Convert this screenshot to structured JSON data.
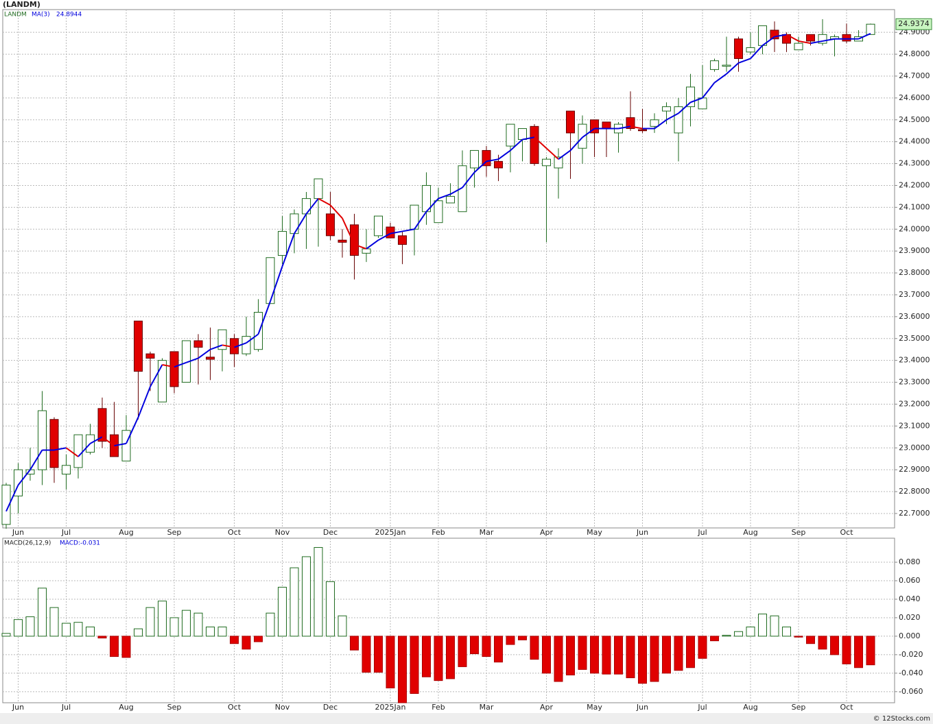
{
  "header": {
    "title": "(LANDM)"
  },
  "footer": {
    "text": "© 12Stocks.com"
  },
  "chart_data": [
    {
      "type": "candlestick",
      "legend": {
        "symbol": "LANDM",
        "ma_name": "MA(3)",
        "ma_value": "24.8944"
      },
      "last_label": "24.9374",
      "categories": [
        null,
        "Jun",
        null,
        null,
        null,
        "Jul",
        null,
        null,
        null,
        null,
        "Aug",
        null,
        null,
        null,
        "Sep",
        null,
        null,
        null,
        null,
        "Oct",
        null,
        null,
        null,
        "Nov",
        null,
        null,
        null,
        "Dec",
        null,
        null,
        null,
        null,
        "2025Jan",
        null,
        null,
        null,
        "Feb",
        null,
        null,
        null,
        "Mar",
        null,
        null,
        null,
        null,
        "Apr",
        null,
        null,
        null,
        "May",
        null,
        null,
        null,
        "Jun",
        null,
        null,
        null,
        null,
        "Jul",
        null,
        null,
        null,
        "Aug",
        null,
        null,
        null,
        "Sep",
        null,
        null,
        null,
        "Oct",
        null,
        null
      ],
      "open": [
        22.65,
        22.78,
        22.88,
        22.9,
        23.13,
        22.88,
        22.91,
        22.98,
        23.18,
        23.06,
        22.94,
        23.58,
        23.43,
        23.21,
        23.44,
        23.3,
        23.49,
        23.415,
        23.45,
        23.5,
        23.43,
        23.45,
        23.66,
        23.88,
        23.98,
        24.07,
        24.14,
        24.07,
        23.95,
        24.02,
        23.89,
        23.97,
        24.01,
        23.97,
        24.0,
        24.08,
        24.03,
        24.12,
        24.08,
        24.28,
        24.36,
        24.31,
        24.38,
        24.41,
        24.47,
        24.29,
        24.28,
        24.54,
        24.37,
        24.5,
        24.49,
        24.44,
        24.51,
        24.455,
        24.47,
        24.54,
        24.44,
        24.56,
        24.55,
        24.73,
        24.745,
        24.87,
        24.81,
        24.84,
        24.91,
        24.89,
        24.82,
        24.89,
        24.85,
        24.87,
        24.89,
        24.86,
        24.89
      ],
      "high": [
        22.84,
        22.93,
        23.0,
        23.26,
        23.14,
        22.97,
        23.06,
        23.11,
        23.23,
        23.21,
        23.15,
        23.58,
        23.44,
        23.41,
        23.44,
        23.49,
        23.52,
        23.55,
        23.54,
        23.52,
        23.6,
        23.68,
        23.87,
        24.06,
        24.09,
        24.17,
        24.23,
        24.17,
        24.0,
        24.07,
        24.0,
        24.06,
        24.03,
        23.99,
        24.11,
        24.26,
        24.19,
        24.21,
        24.36,
        24.36,
        24.38,
        24.34,
        24.48,
        24.46,
        24.48,
        24.33,
        24.37,
        24.54,
        24.52,
        24.5,
        24.49,
        24.49,
        24.63,
        24.55,
        24.53,
        24.58,
        24.6,
        24.71,
        24.75,
        24.78,
        24.88,
        24.88,
        24.9,
        24.93,
        24.95,
        24.9,
        24.88,
        24.89,
        24.96,
        24.89,
        24.94,
        24.91,
        24.94
      ],
      "low": [
        22.63,
        22.7,
        22.85,
        22.83,
        22.84,
        22.81,
        22.86,
        22.97,
        23.0,
        22.96,
        22.94,
        23.13,
        23.26,
        23.21,
        23.25,
        23.3,
        23.29,
        23.31,
        23.35,
        23.37,
        23.42,
        23.44,
        23.66,
        23.84,
        23.89,
        23.91,
        23.92,
        23.95,
        23.87,
        23.77,
        23.85,
        23.96,
        23.96,
        23.84,
        23.88,
        24.02,
        24.03,
        24.12,
        24.08,
        24.19,
        24.24,
        24.22,
        24.26,
        24.31,
        24.29,
        23.94,
        24.14,
        24.23,
        24.3,
        24.33,
        24.33,
        24.35,
        24.45,
        24.44,
        24.44,
        24.48,
        24.31,
        24.47,
        24.55,
        24.72,
        24.72,
        24.72,
        24.8,
        24.8,
        24.81,
        24.81,
        24.82,
        24.84,
        24.84,
        24.79,
        24.85,
        24.86,
        24.89
      ],
      "close": [
        22.83,
        22.9,
        22.9,
        23.17,
        22.91,
        22.92,
        23.06,
        23.06,
        23.03,
        22.96,
        23.08,
        23.35,
        23.41,
        23.4,
        23.28,
        23.49,
        23.46,
        23.405,
        23.54,
        23.43,
        23.51,
        23.62,
        23.87,
        23.99,
        24.07,
        24.14,
        24.23,
        23.97,
        23.94,
        23.88,
        23.91,
        24.06,
        23.96,
        23.93,
        24.11,
        24.2,
        24.13,
        24.15,
        24.29,
        24.36,
        24.29,
        24.28,
        24.48,
        24.46,
        24.3,
        24.32,
        24.33,
        24.44,
        24.48,
        24.44,
        24.46,
        24.48,
        24.46,
        24.45,
        24.5,
        24.56,
        24.56,
        24.65,
        24.6,
        24.77,
        24.75,
        24.78,
        24.83,
        24.93,
        24.87,
        24.85,
        24.85,
        24.86,
        24.89,
        24.88,
        24.86,
        24.88,
        24.9374
      ],
      "ma": [
        22.71,
        22.83,
        22.9,
        22.99,
        22.99,
        23.0,
        22.96,
        23.02,
        23.05,
        23.01,
        23.02,
        23.14,
        23.28,
        23.38,
        23.37,
        23.39,
        23.41,
        23.45,
        23.47,
        23.46,
        23.48,
        23.52,
        23.67,
        23.83,
        23.98,
        24.07,
        24.14,
        24.11,
        24.05,
        23.93,
        23.91,
        23.95,
        23.98,
        23.99,
        24.0,
        24.08,
        24.14,
        24.16,
        24.19,
        24.26,
        24.31,
        24.32,
        24.36,
        24.41,
        24.42,
        24.37,
        24.32,
        24.36,
        24.42,
        24.46,
        24.46,
        24.46,
        24.47,
        24.46,
        24.46,
        24.5,
        24.53,
        24.58,
        24.6,
        24.67,
        24.71,
        24.76,
        24.78,
        24.84,
        24.88,
        24.89,
        24.86,
        24.85,
        24.86,
        24.87,
        24.87,
        24.87,
        24.8944
      ],
      "up_color": "#1f6b1f",
      "down_color": "#e00000",
      "ma_up_color": "#0000dd",
      "ma_down_color": "#e00000",
      "ylim": [
        22.634,
        25.004
      ],
      "yticks": [
        {
          "value": 22.7,
          "label": "22.7000"
        },
        {
          "value": 22.8,
          "label": "22.8000"
        },
        {
          "value": 22.9,
          "label": "22.9000"
        },
        {
          "value": 23.0,
          "label": "23.0000"
        },
        {
          "value": 23.1,
          "label": "23.1000"
        },
        {
          "value": 23.2,
          "label": "23.2000"
        },
        {
          "value": 23.3,
          "label": "23.3000"
        },
        {
          "value": 23.4,
          "label": "23.4000"
        },
        {
          "value": 23.5,
          "label": "23.5000"
        },
        {
          "value": 23.6,
          "label": "23.6000"
        },
        {
          "value": 23.7,
          "label": "23.7000"
        },
        {
          "value": 23.8,
          "label": "23.8000"
        },
        {
          "value": 23.9,
          "label": "23.9000"
        },
        {
          "value": 24.0,
          "label": "24.0000"
        },
        {
          "value": 24.1,
          "label": "24.1000"
        },
        {
          "value": 24.2,
          "label": "24.2000"
        },
        {
          "value": 24.3,
          "label": "24.3000"
        },
        {
          "value": 24.4,
          "label": "24.4000"
        },
        {
          "value": 24.5,
          "label": "24.5000"
        },
        {
          "value": 24.6,
          "label": "24.6000"
        },
        {
          "value": 24.7,
          "label": "24.7000"
        },
        {
          "value": 24.8,
          "label": "24.8000"
        },
        {
          "value": 24.9,
          "label": "24.9000"
        }
      ],
      "grid": true
    },
    {
      "type": "bar",
      "legend": {
        "name": "MACD(26,12,9)",
        "value": "MACD:-0.031"
      },
      "categories": [
        null,
        "Jun",
        null,
        null,
        null,
        "Jul",
        null,
        null,
        null,
        null,
        "Aug",
        null,
        null,
        null,
        "Sep",
        null,
        null,
        null,
        null,
        "Oct",
        null,
        null,
        null,
        "Nov",
        null,
        null,
        null,
        "Dec",
        null,
        null,
        null,
        null,
        "2025Jan",
        null,
        null,
        null,
        "Feb",
        null,
        null,
        null,
        "Mar",
        null,
        null,
        null,
        null,
        "Apr",
        null,
        null,
        null,
        "May",
        null,
        null,
        null,
        "Jun",
        null,
        null,
        null,
        null,
        "Jul",
        null,
        null,
        null,
        "Aug",
        null,
        null,
        null,
        "Sep",
        null,
        null,
        null,
        "Oct",
        null,
        null
      ],
      "values": [
        0.003,
        0.018,
        0.021,
        0.052,
        0.031,
        0.014,
        0.015,
        0.01,
        -0.002,
        -0.022,
        -0.023,
        0.008,
        0.031,
        0.038,
        0.02,
        0.028,
        0.025,
        0.01,
        0.01,
        -0.008,
        -0.014,
        -0.006,
        0.025,
        0.053,
        0.074,
        0.086,
        0.096,
        0.059,
        0.022,
        -0.015,
        -0.039,
        -0.039,
        -0.056,
        -0.072,
        -0.062,
        -0.044,
        -0.048,
        -0.046,
        -0.033,
        -0.019,
        -0.022,
        -0.028,
        -0.009,
        -0.004,
        -0.025,
        -0.04,
        -0.049,
        -0.042,
        -0.036,
        -0.04,
        -0.041,
        -0.041,
        -0.045,
        -0.051,
        -0.049,
        -0.04,
        -0.037,
        -0.034,
        -0.024,
        -0.005,
        0.001,
        0.005,
        0.01,
        0.024,
        0.022,
        0.01,
        -0.001,
        -0.008,
        -0.014,
        -0.02,
        -0.03,
        -0.034,
        -0.031
      ],
      "up_color": "#1f6b1f",
      "down_color": "#e00000",
      "ylim": [
        -0.072,
        0.106
      ],
      "yticks": [
        {
          "value": -0.06,
          "label": "-0.060"
        },
        {
          "value": -0.04,
          "label": "-0.040"
        },
        {
          "value": -0.02,
          "label": "-0.020"
        },
        {
          "value": 0,
          "label": "0.000"
        },
        {
          "value": 0.02,
          "label": "0.020"
        },
        {
          "value": 0.04,
          "label": "0.040"
        },
        {
          "value": 0.06,
          "label": "0.060"
        },
        {
          "value": 0.08,
          "label": "0.080"
        }
      ],
      "grid": true
    }
  ]
}
